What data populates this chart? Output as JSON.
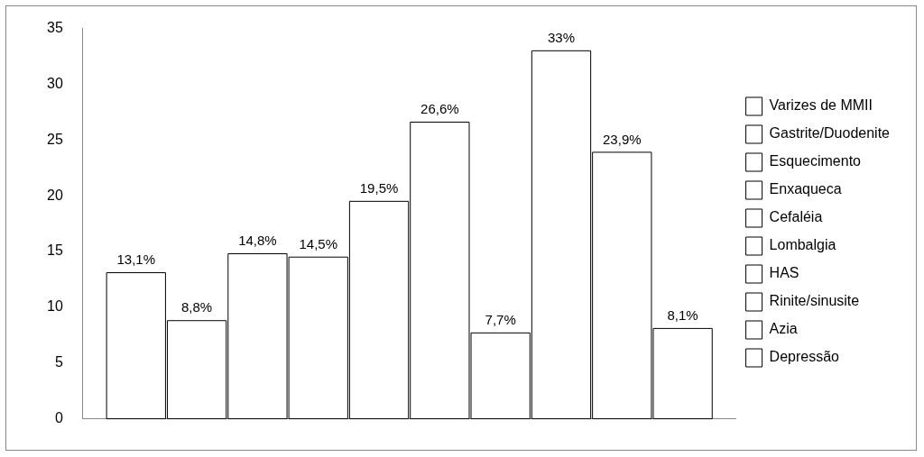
{
  "chart_data": {
    "type": "bar",
    "categories": [
      null
    ],
    "series": [
      {
        "name": "Varizes de MMII",
        "color": "#ffffff",
        "values": [
          13.1
        ],
        "value_labels": [
          "13,1%"
        ]
      },
      {
        "name": "Gastrite/Duodenite",
        "color": "#ffffff",
        "values": [
          8.8
        ],
        "value_labels": [
          "8,8%"
        ]
      },
      {
        "name": "Esquecimento",
        "color": "#ffffff",
        "values": [
          14.8
        ],
        "value_labels": [
          "14,8%"
        ]
      },
      {
        "name": "Enxaqueca",
        "color": "#ffffff",
        "values": [
          14.5
        ],
        "value_labels": [
          "14,5%"
        ]
      },
      {
        "name": "Cefaléia",
        "color": "#ffffff",
        "values": [
          19.5
        ],
        "value_labels": [
          "19,5%"
        ]
      },
      {
        "name": "Lombalgia",
        "color": "#ffffff",
        "values": [
          26.6
        ],
        "value_labels": [
          "26,6%"
        ]
      },
      {
        "name": "HAS",
        "color": "#ffffff",
        "values": [
          7.7
        ],
        "value_labels": [
          "7,7%"
        ]
      },
      {
        "name": "Rinite/sinusite",
        "color": "#ffffff",
        "values": [
          33
        ],
        "value_labels": [
          "33%"
        ]
      },
      {
        "name": "Azia",
        "color": "#ffffff",
        "values": [
          23.9
        ],
        "value_labels": [
          "23,9%"
        ]
      },
      {
        "name": "Depressão",
        "color": "#ffffff",
        "values": [
          8.1
        ],
        "value_labels": [
          "8,1%"
        ]
      }
    ],
    "ylim": [
      0,
      35
    ],
    "yticks": [
      0,
      5,
      10,
      15,
      20,
      25,
      30,
      35
    ],
    "grid": false,
    "legend": "right"
  }
}
